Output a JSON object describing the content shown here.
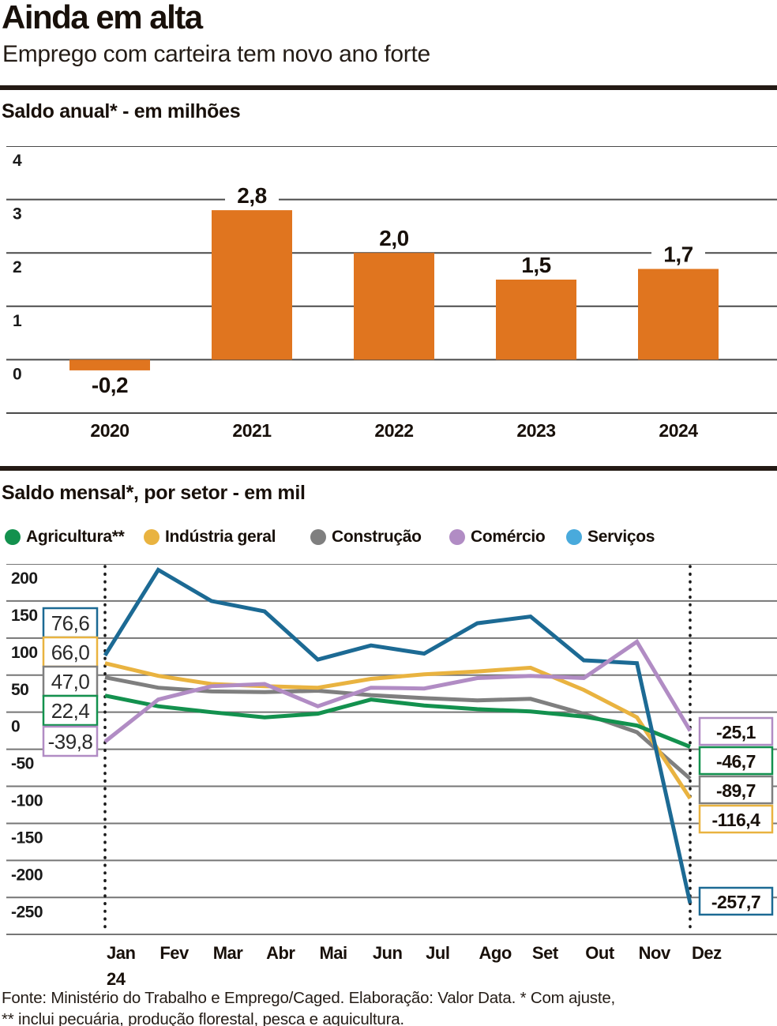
{
  "header": {
    "title": "Ainda em alta",
    "subtitle": "Emprego com carteira tem novo ano forte"
  },
  "annual": {
    "section_title": "Saldo anual* - em milhões"
  },
  "monthly": {
    "section_title": "Saldo mensal*, por setor - em mil"
  },
  "footer": {
    "line1": "Fonte: Ministério do Trabalho e Emprego/Caged. Elaboração: Valor Data. * Com ajuste,",
    "line2": "** inclui pecuária, produção florestal, pesca e aquicultura."
  },
  "colors": {
    "bar_orange": "#e0751f",
    "rule_dark": "#241a14",
    "grid_dark": "#4a4a4a",
    "grid_gray": "#767676",
    "marker_dots": "#1a1a1a"
  },
  "chart_data": [
    {
      "type": "bar",
      "title": "Saldo anual* - em milhões",
      "categories": [
        "2020",
        "2021",
        "2022",
        "2023",
        "2024"
      ],
      "values": [
        -0.2,
        2.8,
        2.0,
        1.5,
        1.7
      ],
      "value_labels": [
        "-0,2",
        "2,8",
        "2,0",
        "1,5",
        "1,7"
      ],
      "bar_color": "#e0751f",
      "ylim": [
        -1,
        4
      ],
      "yticks": [
        4,
        3,
        2,
        1,
        0
      ],
      "grid": true,
      "legend_position": "none"
    },
    {
      "type": "line",
      "title": "Saldo mensal*, por setor - em mil",
      "x": [
        "Jan",
        "Fev",
        "Mar",
        "Abr",
        "Mai",
        "Jun",
        "Jul",
        "Ago",
        "Set",
        "Out",
        "Nov",
        "Dez"
      ],
      "x_year_sub": "24",
      "ylim": [
        -300,
        200
      ],
      "yticks": [
        200,
        150,
        100,
        50,
        0,
        -50,
        -100,
        -150,
        -200,
        -250
      ],
      "grid": true,
      "legend_position": "top",
      "marker_months": [
        "Jan",
        "Dez"
      ],
      "series": [
        {
          "name": "Agricultura**",
          "slug": "agricultura",
          "color": "#13914e",
          "values": [
            22.4,
            8,
            0,
            -7,
            -2,
            17,
            9,
            4,
            1,
            -6,
            -18,
            -46.7
          ],
          "start_label": "22,4",
          "end_label": "-46,7"
        },
        {
          "name": "Indústria geral",
          "slug": "industria-geral",
          "color": "#e9b340",
          "values": [
            66.0,
            49,
            38,
            35,
            33,
            45,
            51,
            55,
            60,
            30,
            -7,
            -116.4
          ],
          "start_label": "66,0",
          "end_label": "-116,4"
        },
        {
          "name": "Construção",
          "slug": "construcao",
          "color": "#7f7f7f",
          "values": [
            47.0,
            33,
            28,
            27,
            29,
            23,
            19,
            16,
            18,
            -2,
            -27,
            -89.7
          ],
          "start_label": "47,0",
          "end_label": "-89,7"
        },
        {
          "name": "Comércio",
          "slug": "comercio",
          "color": "#b18cc4",
          "values": [
            -39.8,
            17,
            35,
            38,
            8,
            33,
            32,
            46,
            49,
            46,
            95,
            -25.1
          ],
          "start_label": "-39,8",
          "end_label": "-25,1"
        },
        {
          "name": "Serviços",
          "slug": "servicos",
          "color": "#1c6a94",
          "legend_color": "#49aadc",
          "values": [
            76.6,
            192,
            150,
            136,
            71,
            90,
            79,
            120,
            129,
            70,
            66,
            -257.7
          ],
          "start_label": "76,6",
          "end_label": "-257,7"
        }
      ]
    }
  ]
}
